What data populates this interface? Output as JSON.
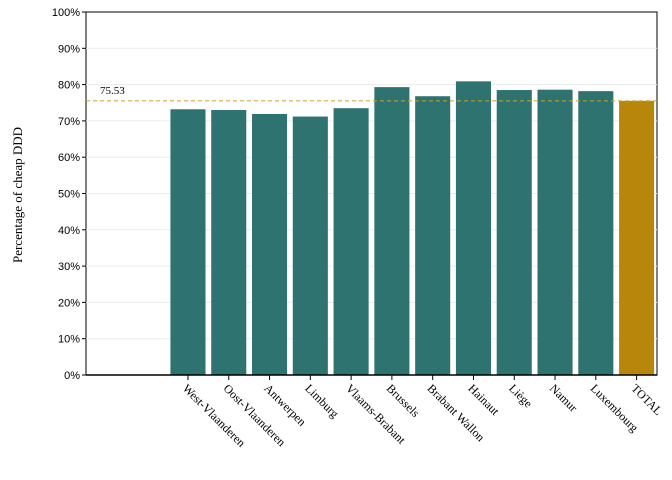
{
  "chart_data": {
    "type": "bar",
    "title": "",
    "xlabel": "",
    "ylabel": "Percentage of cheap DDD",
    "ylim": [
      0,
      100
    ],
    "yticks": [
      0,
      10,
      20,
      30,
      40,
      50,
      60,
      70,
      80,
      90,
      100
    ],
    "ytick_suffix": "%",
    "grid": true,
    "legend": "none",
    "categories": [
      "West-Vlaanderen",
      "Oost-Vlaanderen",
      "Antwerpen",
      "Limburg",
      "Vlaams-Brabant",
      "Brussels",
      "Brabant Wallon",
      "Hainaut",
      "Liège",
      "Namur",
      "Luxembourg",
      "TOTAL"
    ],
    "values": [
      73.2,
      73.0,
      71.9,
      71.2,
      73.5,
      79.3,
      76.8,
      80.9,
      78.5,
      78.6,
      78.2,
      75.53
    ],
    "reference_line": {
      "value": 75.53,
      "label": "75.53",
      "color": "#c9a227"
    },
    "colors": {
      "bar": "#2e7370",
      "total_bar": "#b8860b"
    }
  }
}
